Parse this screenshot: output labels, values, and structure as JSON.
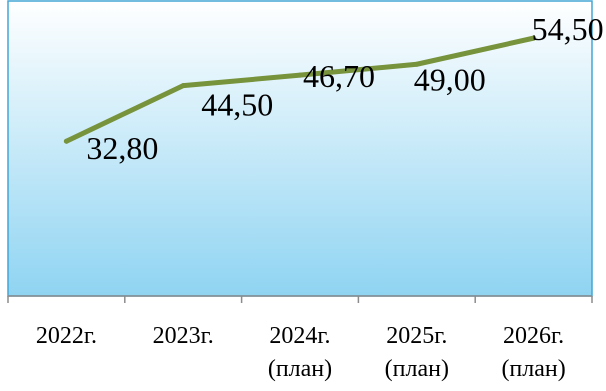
{
  "chart_data": {
    "type": "line",
    "categories": [
      [
        "2022г."
      ],
      [
        "2023г."
      ],
      [
        "2024г.",
        "(план)"
      ],
      [
        "2025г.",
        "(план)"
      ],
      [
        "2026г.",
        "(план)"
      ]
    ],
    "series": [
      {
        "values": [
          32.8,
          44.5,
          46.7,
          49.0,
          54.5
        ],
        "data_labels": [
          "32,80",
          "44,50",
          "46,70",
          "49,00",
          "54,50"
        ]
      }
    ],
    "ylim": [
      0,
      56
    ],
    "grid": false,
    "legend": "none",
    "colors": {
      "line": "#77933C",
      "plot_fill_top": "#FFFFFF",
      "plot_fill_bottom": "#8FD4F2",
      "plot_border": "#43A5D6",
      "axis": "#8C8C8C"
    }
  }
}
